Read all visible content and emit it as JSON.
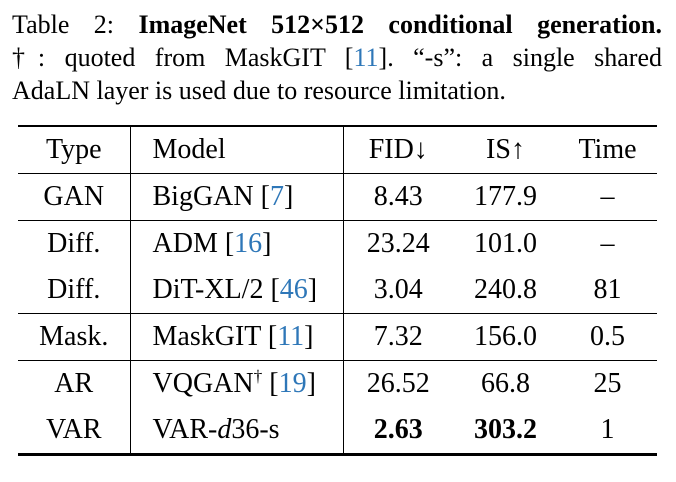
{
  "caption": {
    "line1_prefix": "Table 2: ",
    "line1_bold": "ImageNet 512×512 conditional generation.",
    "line2_pre": "†: quoted from MaskGIT [",
    "line2_cite": "11",
    "line2_post": "]. “-s”: a single shared",
    "line3": "AdaLN layer is used due to resource limitation."
  },
  "colors": {
    "citation_blue": "#2e77b8",
    "text": "#000000",
    "background": "#ffffff"
  },
  "table": {
    "headers": [
      "Type",
      "Model",
      "FID↓",
      "IS↑",
      "Time"
    ],
    "rows": [
      {
        "type": "GAN",
        "model": {
          "pre": "BigGAN [",
          "sup": "",
          "it": "",
          "mid": "",
          "cite": "7",
          "post": "]"
        },
        "fid": "8.43",
        "is": "177.9",
        "time": "–"
      },
      {
        "type": "Diff.",
        "model": {
          "pre": "ADM [",
          "sup": "",
          "it": "",
          "mid": "",
          "cite": "16",
          "post": "]"
        },
        "fid": "23.24",
        "is": "101.0",
        "time": "–"
      },
      {
        "type": "Diff.",
        "model": {
          "pre": "DiT-XL/2 [",
          "sup": "",
          "it": "",
          "mid": "",
          "cite": "46",
          "post": "]"
        },
        "fid": "3.04",
        "is": "240.8",
        "time": "81"
      },
      {
        "type": "Mask.",
        "model": {
          "pre": "MaskGIT [",
          "sup": "",
          "it": "",
          "mid": "",
          "cite": "11",
          "post": "]"
        },
        "fid": "7.32",
        "is": "156.0",
        "time": "0.5"
      },
      {
        "type": "AR",
        "model": {
          "pre": "VQGAN",
          "sup": "†",
          "it": "",
          "mid": " [",
          "cite": "19",
          "post": "]"
        },
        "fid": "26.52",
        "is": "66.8",
        "time": "25"
      },
      {
        "type": "VAR",
        "model": {
          "pre": "VAR-",
          "sup": "",
          "it": "d",
          "mid": "36-s",
          "cite": "",
          "post": ""
        },
        "fid": "2.63",
        "is": "303.2",
        "time": "1"
      }
    ]
  }
}
